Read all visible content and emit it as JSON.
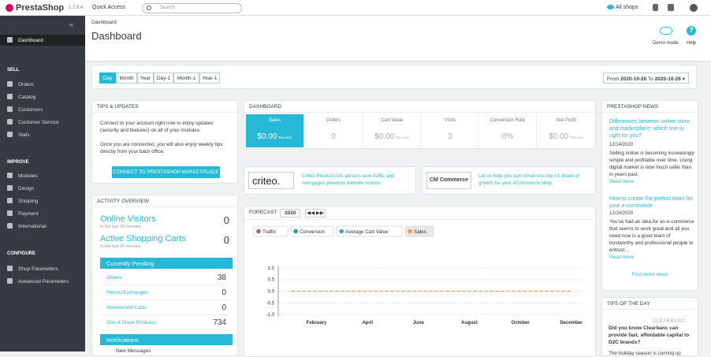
{
  "topbar": {
    "brand": "PrestaShop",
    "version": "1.7.6.4",
    "quick_access": "Quick Access",
    "search_placeholder": "Search",
    "shop_link": "All shops"
  },
  "sidebar": {
    "active": "Dashboard",
    "sections": [
      {
        "title": "SELL",
        "items": [
          "Orders",
          "Catalog",
          "Customers",
          "Customer Service",
          "Stats"
        ]
      },
      {
        "title": "IMPROVE",
        "items": [
          "Modules",
          "Design",
          "Shipping",
          "Payment",
          "International"
        ]
      },
      {
        "title": "CONFIGURE",
        "items": [
          "Shop Parameters",
          "Advanced Parameters"
        ]
      }
    ]
  },
  "header": {
    "breadcrumb": "Dashboard",
    "title": "Dashboard",
    "actions": [
      "Demo mode",
      "Help"
    ]
  },
  "toolbar": {
    "periods": [
      "Day",
      "Month",
      "Year",
      "Day-1",
      "Month-1",
      "Year-1"
    ],
    "from_label": "From",
    "from_date": "2020-10-26",
    "to_label": "To",
    "to_date": "2020-10-26"
  },
  "tips": {
    "title": "TIPS & UPDATES",
    "text1": "Connect to your account right now to enjoy updates (security and features) on all of your modules.",
    "text2": "Once you are connected, you will also enjoy weekly tips directly from your back office.",
    "button": "CONNECT TO PRESTASHOP MARKETPLACE"
  },
  "activity": {
    "title": "ACTIVITY OVERVIEW",
    "live": [
      {
        "label": "Online Visitors",
        "value": "0",
        "note": "in the last 30 minutes"
      },
      {
        "label": "Active Shopping Carts",
        "value": "0",
        "note": "in the last 30 minutes"
      }
    ],
    "pending_title": "Currently Pending",
    "pending": [
      {
        "label": "Orders",
        "value": "38"
      },
      {
        "label": "Return/Exchanges",
        "value": "0"
      },
      {
        "label": "Abandoned Carts",
        "value": "0"
      },
      {
        "label": "Out of Stock Products",
        "value": "734"
      }
    ],
    "notifications_title": "Notifications",
    "notifications_first": "New Messages"
  },
  "dashboard": {
    "title": "DASHBOARD",
    "kpis": [
      {
        "label": "Sales",
        "value": "$0.00",
        "note": "Tax excl."
      },
      {
        "label": "Orders",
        "value": "0"
      },
      {
        "label": "Cart Value",
        "value": "$0.00",
        "note": "Tax excl."
      },
      {
        "label": "Visits",
        "value": "3"
      },
      {
        "label": "Conversion Rate",
        "value": "0%"
      },
      {
        "label": "Net Profit",
        "value": "$0.00",
        "note": "Tax excl."
      }
    ]
  },
  "promos": [
    {
      "logo": "criteo.",
      "text": "Criteo Product Ads attracts new traffic and reengages previous website visitors"
    },
    {
      "logo": "CM Commerce",
      "text": "Let us help you turn email into the #1 driver of growth for your eCommerce shop."
    }
  ],
  "forecast": {
    "title": "FORECAST",
    "year": "2020",
    "chart_data": {
      "type": "line",
      "categories": [
        null,
        "February",
        null,
        "April",
        null,
        "June",
        null,
        "August",
        null,
        "October",
        null,
        "December"
      ],
      "series": [
        {
          "name": "Traffic",
          "color": "#9c5fae",
          "values": [
            null,
            null,
            null,
            null,
            null,
            null,
            null,
            null,
            null,
            null,
            null,
            null
          ]
        },
        {
          "name": "Conversion",
          "color": "#20a38b",
          "values": [
            null,
            null,
            null,
            null,
            null,
            null,
            null,
            null,
            null,
            null,
            null,
            null
          ]
        },
        {
          "name": "Average Cart Value",
          "color": "#2ea8dc",
          "values": [
            null,
            null,
            null,
            null,
            null,
            null,
            null,
            null,
            null,
            null,
            null,
            null
          ]
        },
        {
          "name": "Sales",
          "color": "#f39c4a",
          "values": [
            0,
            0,
            0,
            0,
            0,
            0,
            0,
            0,
            0,
            0,
            0,
            0
          ]
        }
      ],
      "selected": "Sales",
      "ylim": [
        -1.1,
        1.1
      ],
      "yticks": [
        {
          "value": 1,
          "label": "1.0"
        },
        0.5,
        {
          "value": 0,
          "label": "0.0"
        },
        -0.5,
        {
          "value": -1,
          "label": "-1.0"
        }
      ],
      "grid": true
    }
  },
  "news": {
    "title": "PRESTASHOP NEWS",
    "items": [
      {
        "title": "Differences between online store and marketplace: which one is right for you?",
        "date": "12/14/2020",
        "text": "Selling online is becoming increasingly simple and profitable over time. Using digital market is now much safer than in years past.",
        "more": "Read more"
      },
      {
        "title": "How to create the perfect team for your e-commerce",
        "date": "12/10/2020",
        "text": "You've had an idea for an e-commerce that seems to work great and all you need now is a good team of trustworthy and professional people to entrust...",
        "more": "Read more"
      }
    ],
    "find_more": "Find more news"
  },
  "tip_of_day": {
    "title": "TIPS OF THE DAY",
    "logo": "CLEARBANC",
    "heading": "Did you know Clearbanc can provide fast, affordable capital to D2C brands?",
    "text": "The holiday season is coming up"
  }
}
